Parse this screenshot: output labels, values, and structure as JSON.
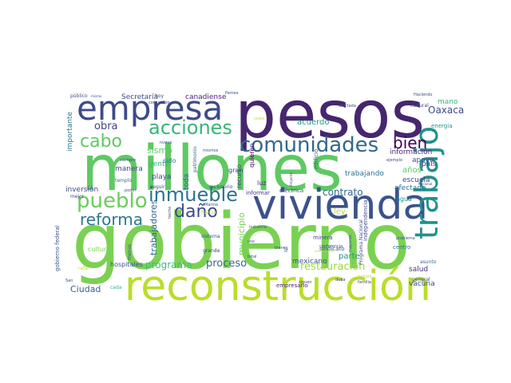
{
  "word_cloud": {
    "words": [
      {
        "text": "gobierno",
        "color": "#7ad151"
      },
      {
        "text": "millones",
        "color": "#5ec962"
      },
      {
        "text": "pesos",
        "color": "#46266e"
      },
      {
        "text": "vivienda",
        "color": "#3b528b"
      },
      {
        "text": "reconstrucción",
        "color": "#b8de29"
      },
      {
        "text": "empresa",
        "color": "#3e4a89"
      },
      {
        "text": "trabajo",
        "color": "#21918c"
      },
      {
        "text": "comunidades",
        "color": "#31688e"
      },
      {
        "text": "acciones",
        "color": "#35b779"
      },
      {
        "text": "pueblo",
        "color": "#6ccd5a"
      },
      {
        "text": "inmueble",
        "color": "#2c728e"
      },
      {
        "text": "reforma",
        "color": "#2a788e"
      },
      {
        "text": "daño",
        "color": "#3e4989"
      },
      {
        "text": "cabo",
        "color": "#5ec962"
      },
      {
        "text": "bien",
        "color": "#440154"
      },
      {
        "text": "obra",
        "color": "#414487"
      },
      {
        "text": "programa",
        "color": "#3fbc73"
      },
      {
        "text": "proceso",
        "color": "#31688e"
      },
      {
        "text": "restauración",
        "color": "#9bd93c"
      },
      {
        "text": "contrato",
        "color": "#31688e"
      },
      {
        "text": "Oaxaca",
        "color": "#3e4a89"
      },
      {
        "text": "Ciudad",
        "color": "#33638d"
      },
      {
        "text": "trabajadores",
        "color": "#31688e"
      },
      {
        "text": "municipio",
        "color": "#7ad151"
      },
      {
        "text": "importante",
        "color": "#2a788e"
      },
      {
        "text": "acuerdo",
        "color": "#1f9e89"
      },
      {
        "text": "Secretaría",
        "color": "#3e4a89"
      },
      {
        "text": "canadiense",
        "color": "#481f70"
      },
      {
        "text": "mano",
        "color": "#35b779"
      },
      {
        "text": "país",
        "color": "#472c7a"
      },
      {
        "text": "años",
        "color": "#5ec962"
      },
      {
        "text": "escuela",
        "color": "#3e4a89"
      },
      {
        "text": "afectado",
        "color": "#2c728e"
      },
      {
        "text": "apoyo",
        "color": "#3b528b"
      },
      {
        "text": "información",
        "color": "#482878"
      },
      {
        "text": "parte",
        "color": "#21918c"
      },
      {
        "text": "salud",
        "color": "#46337e"
      },
      {
        "text": "vacuna",
        "color": "#3e4a89"
      },
      {
        "text": "mexicano",
        "color": "#3b528b"
      },
      {
        "text": "sismo",
        "color": "#5ec962"
      },
      {
        "text": "inversión",
        "color": "#3e4989"
      },
      {
        "text": "gente",
        "color": "#35b779"
      },
      {
        "text": "manera",
        "color": "#404688"
      },
      {
        "text": "playa",
        "color": "#3e4a89"
      },
      {
        "text": "sido",
        "color": "#2a788e"
      },
      {
        "text": "toda",
        "color": "#31688e"
      },
      {
        "text": "trabajando",
        "color": "#2c728e"
      },
      {
        "text": "hospitales",
        "color": "#3b528b"
      },
      {
        "text": "cultura",
        "color": "#7ad151"
      },
      {
        "text": "gobierno federal",
        "color": "#3b528b"
      },
      {
        "text": "luz",
        "color": "#472d7b"
      },
      {
        "text": "gran",
        "color": "#453781"
      },
      {
        "text": "recurso",
        "color": "#3e4a89"
      },
      {
        "text": "quieren",
        "color": "#440154"
      },
      {
        "text": "edificio",
        "color": "#31688e"
      },
      {
        "text": "agua",
        "color": "#21918c"
      },
      {
        "text": "eléctrica",
        "color": "#3e4989"
      },
      {
        "text": "informar",
        "color": "#453781"
      },
      {
        "text": "independencia",
        "color": "#3e4989"
      },
      {
        "text": "Programa Nacional",
        "color": "#404688"
      },
      {
        "text": "centro",
        "color": "#2a788e"
      },
      {
        "text": "minera",
        "color": "#3e4a89"
      },
      {
        "text": "empresario",
        "color": "#481f70"
      },
      {
        "text": "sindicato",
        "color": "#3b528b"
      },
      {
        "text": "energía",
        "color": "#21918c"
      },
      {
        "text": "cultural",
        "color": "#404688"
      },
      {
        "text": "asunto",
        "color": "#31688e"
      },
      {
        "text": "general",
        "color": "#3e4a89"
      },
      {
        "text": "público",
        "color": "#3e4a89"
      },
      {
        "text": "mejor",
        "color": "#414487"
      },
      {
        "text": "templo",
        "color": "#2c728e"
      },
      {
        "text": "hoy",
        "color": "#404688"
      },
      {
        "text": "poder",
        "color": "#3b528b"
      },
      {
        "text": "mismos",
        "color": "#3b528b"
      },
      {
        "text": "seguir",
        "color": "#404688"
      },
      {
        "text": "patrimonio",
        "color": "#31688e"
      },
      {
        "text": "reclusorio",
        "color": "#3e4a89"
      },
      {
        "text": "grande",
        "color": "#453781"
      },
      {
        "text": "sistema",
        "color": "#3b528b"
      },
      {
        "text": "menos",
        "color": "#3e4a89"
      },
      {
        "text": "cada",
        "color": "#35b779"
      },
      {
        "text": "ejemplo",
        "color": "#3e4a89"
      },
      {
        "text": "problema",
        "color": "#3b528b"
      },
      {
        "text": "total",
        "color": "#3e4a89"
      },
      {
        "text": "bienes",
        "color": "#3e4a89"
      },
      {
        "text": "duda",
        "color": "#404688"
      },
      {
        "text": "siguen",
        "color": "#3e4a89"
      },
      {
        "text": "familia",
        "color": "#404688"
      },
      {
        "text": "afectada",
        "color": "#3e4a89"
      },
      {
        "text": "Haciendo",
        "color": "#3e4a89"
      },
      {
        "text": "Marina",
        "color": "#3b528b"
      },
      {
        "text": "mismo",
        "color": "#3b528b"
      },
      {
        "text": "hecho",
        "color": "#3e4a89"
      },
      {
        "text": "ley",
        "color": "#b8de29"
      },
      {
        "text": "tiempo",
        "color": "#b8de29"
      },
      {
        "text": "fuerza",
        "color": "#b8de29"
      },
      {
        "text": "costo",
        "color": "#b8de29"
      },
      {
        "text": "ir",
        "color": "#3e4a89"
      },
      {
        "text": "uso",
        "color": "#3e4a89"
      },
      {
        "text": "industria",
        "color": "#3b528b"
      },
      {
        "text": "corrupción",
        "color": "#404688"
      },
      {
        "text": "Nacional",
        "color": "#3e4a89"
      },
      {
        "text": "conferencia",
        "color": "#3b528b"
      },
      {
        "text": "dirigente",
        "color": "#3b528b"
      },
      {
        "text": "mayores",
        "color": "#3e4a89"
      },
      {
        "text": "siempre",
        "color": "#3e4a89"
      },
      {
        "text": "conferencia",
        "color": "#b8de29"
      },
      {
        "text": "nuevo",
        "color": "#3b528b"
      },
      {
        "text": "San",
        "color": "#3e4a89"
      },
      {
        "text": "rafa",
        "color": "#b8de29"
      },
      {
        "text": "Pemex",
        "color": "#3b528b"
      }
    ]
  }
}
